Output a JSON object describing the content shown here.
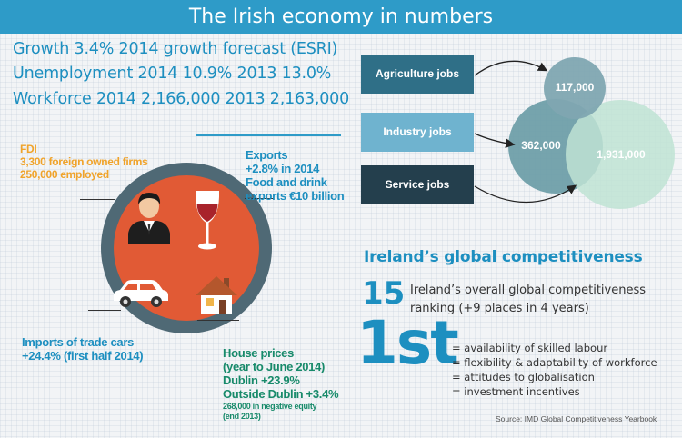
{
  "title": "The Irish economy in numbers",
  "headlines": {
    "growth": "Growth 3.4% 2014 growth forecast (ESRI)",
    "unemployment": "Unemployment 2014 10.9% 2013 13.0%",
    "workforce": "Workforce 2014 2,166,000  2013 2,163,000"
  },
  "fdi": {
    "title": "FDI",
    "firms": "3,300 foreign owned firms",
    "employed": "250,000 employed"
  },
  "exports": {
    "title": "Exports",
    "growth": "+2.8% in 2014",
    "food_1": "Food and drink",
    "food_2": "exports €10 billion"
  },
  "imports": {
    "line1": "Imports of trade cars",
    "line2": "+24.4% (first half 2014)"
  },
  "house": {
    "line1": "House prices",
    "line2": "(year to June 2014)",
    "line3": "Dublin +23.9%",
    "line4": "Outside Dublin +3.4%"
  },
  "equity": {
    "line1": "268,000 in negative equity",
    "line2": "(end 2013)"
  },
  "jobs": {
    "agriculture_label": "Agriculture jobs",
    "industry_label": "Industry jobs",
    "service_label": "Service jobs",
    "agriculture_value": "117,000",
    "industry_value": "362,000",
    "service_value": "1,931,000"
  },
  "competitiveness": {
    "title": "Ireland’s global competitiveness",
    "rank": "15",
    "rank_line1": "Ireland’s overall global competitiveness",
    "rank_line2": "ranking (+9 places in 4 years)",
    "first": "1st",
    "factors": [
      "= availability of skilled labour",
      "= flexibility & adaptability of workforce",
      "= attitudes to globalisation",
      "= investment incentives"
    ],
    "source": "Source: IMD Global Competitiveness Yearbook"
  },
  "colors": {
    "header_blue": "#2e9bc8",
    "circle_outer": "#4f6975",
    "circle_inner": "#e15a35",
    "fdi_orange": "#f0a32a",
    "house_green": "#178a6a",
    "agri_box": "#2f6f87",
    "industry_box": "#6fb3cf",
    "service_box": "#243f4d",
    "bubble_agri": "#7fa7b1",
    "bubble_industry": "#6f9fa9",
    "bubble_service": "#bfe3d4"
  }
}
